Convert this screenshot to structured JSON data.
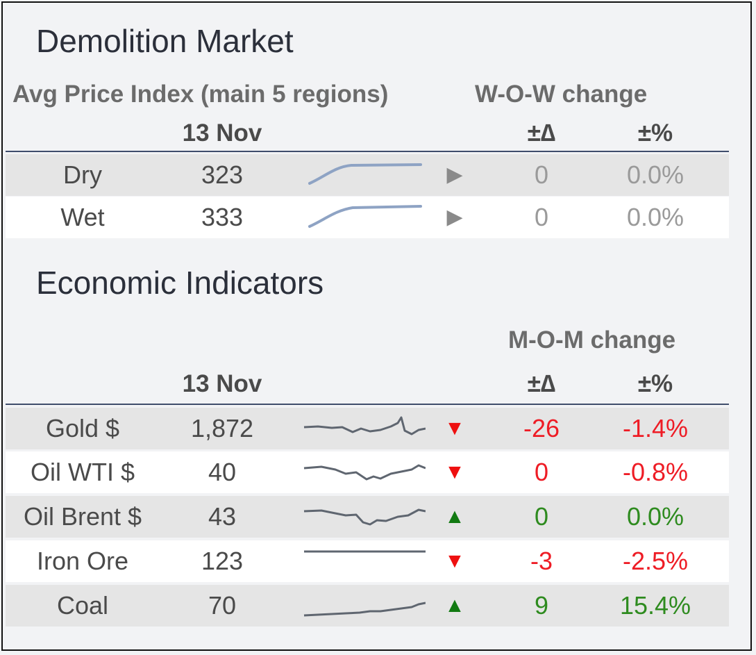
{
  "demolition": {
    "title": "Demolition Market",
    "subtitle": "Avg Price Index (main 5 regions)",
    "change_header": "W-O-W change",
    "date": "13 Nov",
    "delta_header": "±∆",
    "pct_header": "±%",
    "rows": [
      {
        "label": "Dry",
        "value": "323",
        "arrow": "right-arrow-icon",
        "arrow_glyph": "▶",
        "delta": "0",
        "pct": "0.0%"
      },
      {
        "label": "Wet",
        "value": "333",
        "arrow": "right-arrow-icon",
        "arrow_glyph": "▶",
        "delta": "0",
        "pct": "0.0%"
      }
    ]
  },
  "economic": {
    "title": "Economic Indicators",
    "change_header": "M-O-M change",
    "date": "13 Nov",
    "delta_header": "±∆",
    "pct_header": "±%",
    "rows": [
      {
        "label": "Gold $",
        "value": "1,872",
        "arrow": "down-arrow-icon",
        "arrow_glyph": "▼",
        "delta": "-26",
        "pct": "-1.4%"
      },
      {
        "label": "Oil WTI $",
        "value": "40",
        "arrow": "down-arrow-icon",
        "arrow_glyph": "▼",
        "delta": "0",
        "pct": "-0.8%"
      },
      {
        "label": "Oil Brent $",
        "value": "43",
        "arrow": "up-arrow-icon",
        "arrow_glyph": "▲",
        "delta": "0",
        "pct": "0.0%"
      },
      {
        "label": "Iron Ore",
        "value": "123",
        "arrow": "down-arrow-icon",
        "arrow_glyph": "▼",
        "delta": "-3",
        "pct": "-2.5%"
      },
      {
        "label": "Coal",
        "value": "70",
        "arrow": "up-arrow-icon",
        "arrow_glyph": "▲",
        "delta": "9",
        "pct": "15.4%"
      }
    ]
  },
  "colors": {
    "negative": "#ee1c25",
    "positive": "#2e8b1f",
    "neutral": "#9a9a9a",
    "rule": "#3f4d6b",
    "sparkline_demolition": "#8ea3c4",
    "sparkline_economic": "#5f6670"
  }
}
